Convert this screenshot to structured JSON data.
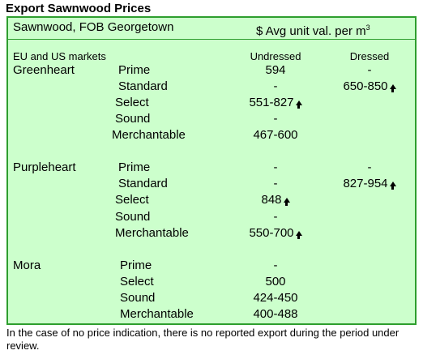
{
  "title": "Export Sawnwood Prices",
  "header": {
    "left": "Sawnwood, FOB Georgetown",
    "right_prefix": "$ Avg unit val. per m",
    "right_superscript": "3"
  },
  "subheader": {
    "market": "EU and US markets",
    "col1": "Undressed",
    "col2": "Dressed"
  },
  "rows": [
    {
      "species": "Greenheart",
      "grade": "Prime",
      "undressed": "594",
      "undressed_arrow": "",
      "dressed": "-",
      "dressed_arrow": ""
    },
    {
      "species": "",
      "grade": "Standard",
      "undressed": "-",
      "undressed_arrow": "",
      "dressed": "650-850",
      "dressed_arrow": "up-arrow"
    },
    {
      "species": "",
      "grade": "Select",
      "undressed": "551-827",
      "undressed_arrow": "up-arrow",
      "dressed": "",
      "dressed_arrow": ""
    },
    {
      "species": "",
      "grade": "Sound",
      "undressed": "-",
      "undressed_arrow": "",
      "dressed": "",
      "dressed_arrow": ""
    },
    {
      "species": "",
      "grade": "Merchantable",
      "undressed": "467-600",
      "undressed_arrow": "",
      "dressed": "",
      "dressed_arrow": ""
    },
    {
      "species": "Purpleheart",
      "grade": "Prime",
      "undressed": "-",
      "undressed_arrow": "",
      "dressed": "-",
      "dressed_arrow": ""
    },
    {
      "species": "",
      "grade": "Standard",
      "undressed": "-",
      "undressed_arrow": "",
      "dressed": "827-954",
      "dressed_arrow": "up-arrow"
    },
    {
      "species": "",
      "grade": "Select",
      "undressed": "848",
      "undressed_arrow": "up-arrow",
      "dressed": "",
      "dressed_arrow": ""
    },
    {
      "species": "",
      "grade": "Sound",
      "undressed": "-",
      "undressed_arrow": "",
      "dressed": "",
      "dressed_arrow": ""
    },
    {
      "species": "",
      "grade": "Merchantable",
      "undressed": "550-700",
      "undressed_arrow": "up-arrow",
      "dressed": "",
      "dressed_arrow": ""
    },
    {
      "species": "Mora",
      "grade": "Prime",
      "undressed": "-",
      "undressed_arrow": "",
      "dressed": "",
      "dressed_arrow": ""
    },
    {
      "species": "",
      "grade": "Select",
      "undressed": "500",
      "undressed_arrow": "",
      "dressed": "",
      "dressed_arrow": ""
    },
    {
      "species": "",
      "grade": "Sound",
      "undressed": "424-450",
      "undressed_arrow": "",
      "dressed": "",
      "dressed_arrow": ""
    },
    {
      "species": "",
      "grade": "Merchantable",
      "undressed": "400-488",
      "undressed_arrow": "",
      "dressed": "",
      "dressed_arrow": ""
    }
  ],
  "footnote": "In the case of no price indication, there is no reported export during the period under review.",
  "colors": {
    "background": "#ccffcc",
    "border": "#2e9e2e"
  }
}
